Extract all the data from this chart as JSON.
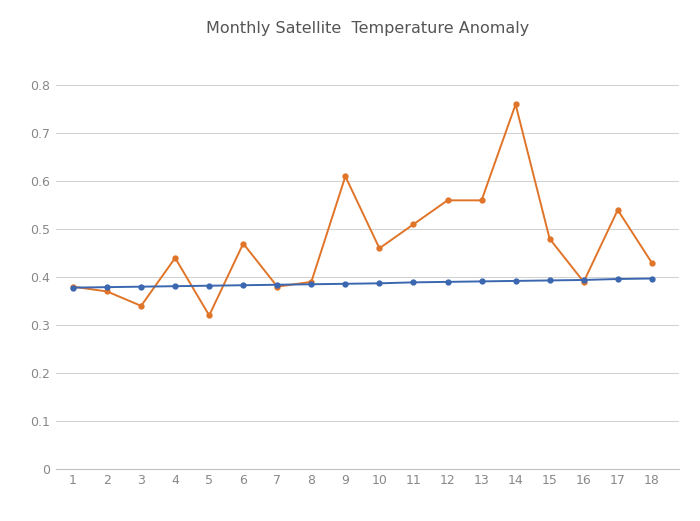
{
  "title": "Monthly Satellite  Temperature Anomaly",
  "x": [
    1,
    2,
    3,
    4,
    5,
    6,
    7,
    8,
    9,
    10,
    11,
    12,
    13,
    14,
    15,
    16,
    17,
    18
  ],
  "orange_y": [
    0.38,
    0.37,
    0.34,
    0.44,
    0.32,
    0.47,
    0.38,
    0.39,
    0.61,
    0.46,
    0.51,
    0.56,
    0.56,
    0.76,
    0.48,
    0.39,
    0.54,
    0.43
  ],
  "blue_y": [
    0.378,
    0.379,
    0.38,
    0.381,
    0.382,
    0.383,
    0.384,
    0.385,
    0.386,
    0.387,
    0.389,
    0.39,
    0.391,
    0.392,
    0.393,
    0.394,
    0.396,
    0.397
  ],
  "orange_color": "#E07428",
  "blue_color": "#3A67B0",
  "ylim": [
    0,
    0.88
  ],
  "xlim": [
    0.5,
    18.8
  ],
  "yticks": [
    0,
    0.1,
    0.2,
    0.3,
    0.4,
    0.5,
    0.6,
    0.7,
    0.8
  ],
  "xticks": [
    1,
    2,
    3,
    4,
    5,
    6,
    7,
    8,
    9,
    10,
    11,
    12,
    13,
    14,
    15,
    16,
    17,
    18
  ],
  "bg_color": "#FFFFFF",
  "plot_bg_color": "#FFFFFF",
  "title_fontsize": 11.5,
  "tick_fontsize": 9,
  "marker_size": 3.5,
  "line_width": 1.4,
  "grid_color": "#D0D0D0",
  "spine_color": "#C0C0C0",
  "tick_color": "#888888"
}
